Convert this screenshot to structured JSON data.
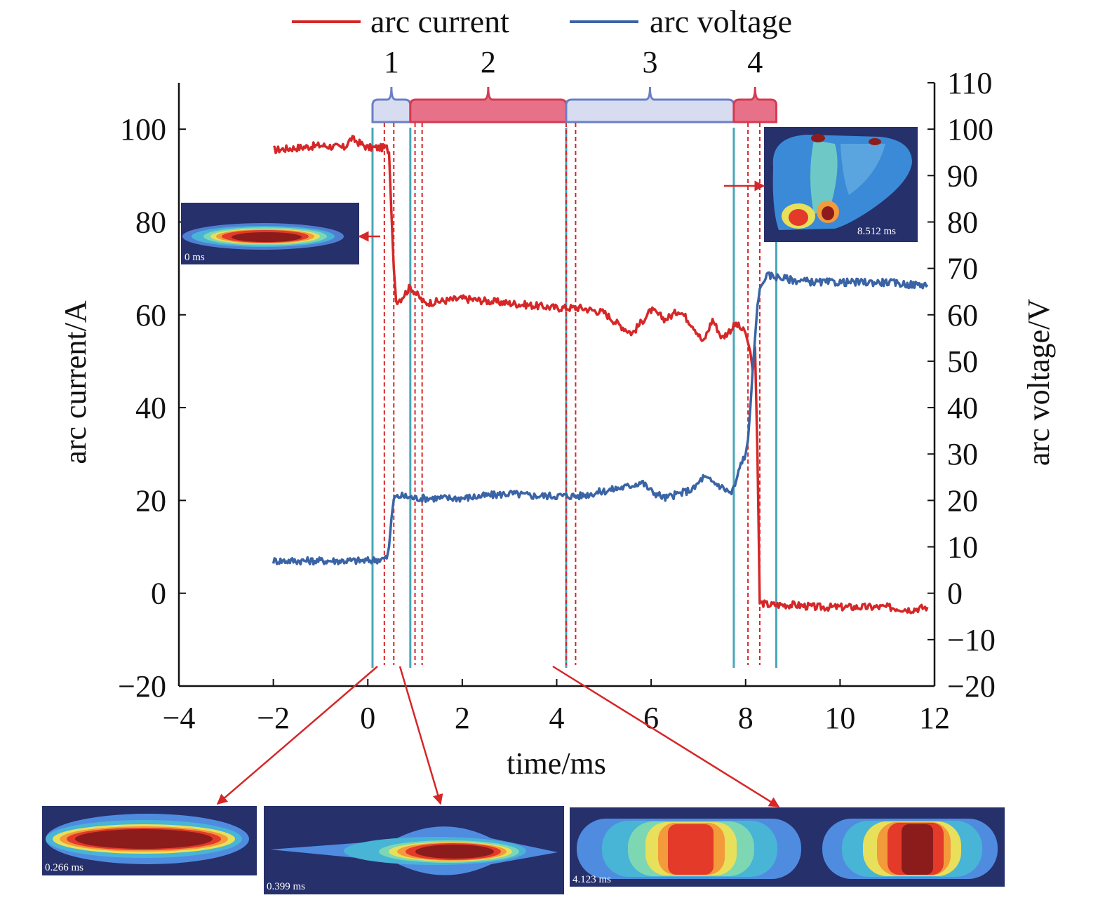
{
  "chart_data": {
    "type": "line",
    "title": "",
    "xlabel": "time/ms",
    "ylabel_left": "arc current/A",
    "ylabel_right": "arc voltage/V",
    "xlim": [
      -4,
      12
    ],
    "ylim_left": [
      -20,
      110
    ],
    "ylim_right": [
      -20,
      110
    ],
    "x_ticks": [
      "−4",
      "−2",
      "0",
      "2",
      "4",
      "6",
      "8",
      "10",
      "12"
    ],
    "left_ticks": [
      "−20",
      "0",
      "20",
      "40",
      "60",
      "80",
      "100"
    ],
    "right_ticks": [
      "−20",
      "−10",
      "0",
      "10",
      "20",
      "30",
      "40",
      "50",
      "60",
      "70",
      "80",
      "90",
      "100",
      "110"
    ],
    "grid": false,
    "legend_position": "top",
    "series": [
      {
        "name": "arc current",
        "color": "#d62728",
        "axis": "left",
        "x": [
          -2,
          -1.5,
          -1,
          -0.5,
          -0.35,
          0,
          0.4,
          0.45,
          0.5,
          0.55,
          0.6,
          0.7,
          0.9,
          1.2,
          1.6,
          2,
          2.5,
          3,
          3.5,
          4,
          4.5,
          5,
          5.3,
          5.6,
          6,
          6.3,
          6.6,
          6.9,
          7.1,
          7.3,
          7.5,
          7.8,
          8.0,
          8.1,
          8.15,
          8.2,
          8.25,
          8.3,
          8.5,
          9,
          9.5,
          10,
          10.5,
          11,
          11.5,
          11.85
        ],
        "values": [
          95.5,
          96,
          96.5,
          96,
          98,
          96,
          96,
          95,
          82,
          70,
          63,
          63.5,
          66,
          62.5,
          63,
          63.5,
          63,
          62.5,
          62,
          61.5,
          61.5,
          60.5,
          58,
          56,
          61,
          59,
          61,
          57.5,
          54,
          59,
          55,
          58,
          56,
          52,
          48,
          53,
          30,
          -2,
          -2.5,
          -2.5,
          -3,
          -3,
          -3,
          -3,
          -3.5,
          -3
        ]
      },
      {
        "name": "arc voltage",
        "color": "#3a64a5",
        "axis": "right",
        "x": [
          -2,
          -1.5,
          -1,
          -0.5,
          0,
          0.4,
          0.45,
          0.5,
          0.55,
          0.7,
          1,
          1.5,
          2,
          2.5,
          3,
          3.5,
          4,
          4.5,
          5,
          5.5,
          5.8,
          6,
          6.3,
          6.6,
          6.9,
          7.1,
          7.4,
          7.7,
          7.8,
          7.9,
          8.0,
          8.05,
          8.1,
          8.15,
          8.2,
          8.25,
          8.3,
          8.4,
          8.5,
          9,
          9.5,
          10,
          10.5,
          11,
          11.5,
          11.85
        ],
        "values": [
          7,
          7,
          7,
          7,
          7,
          7.5,
          10,
          16,
          20.5,
          21,
          20.5,
          20.5,
          20.5,
          21,
          21.5,
          21,
          21,
          21,
          22,
          23,
          24,
          22,
          20.5,
          21.5,
          22.5,
          25,
          23.5,
          21.5,
          24,
          28,
          30,
          33,
          40,
          48,
          55,
          62,
          65,
          68,
          68.5,
          67.5,
          67,
          67,
          67,
          67,
          66.5,
          66.5
        ]
      }
    ],
    "phases": [
      {
        "label": "1",
        "x_start": 0.1,
        "x_end": 0.9,
        "color": "#d8dcf0",
        "edge": "#6b7fc6"
      },
      {
        "label": "2",
        "x_start": 0.9,
        "x_end": 4.2,
        "color": "#e8718a",
        "edge": "#d63a52"
      },
      {
        "label": "3",
        "x_start": 4.2,
        "x_end": 7.75,
        "color": "#d8dcf0",
        "edge": "#6b7fc6"
      },
      {
        "label": "4",
        "x_start": 7.75,
        "x_end": 8.65,
        "color": "#e8718a",
        "edge": "#d63a52"
      }
    ],
    "phase_boundaries_x": [
      0.1,
      0.9,
      4.2,
      7.75,
      8.65
    ],
    "snapshot_markers_x": [
      0.35,
      0.55,
      1.0,
      1.15,
      4.2,
      4.4,
      8.05,
      8.3
    ],
    "insets": [
      {
        "time": "0 ms",
        "colormap": "horizontal-arc"
      },
      {
        "time": "8.512 ms",
        "colormap": "split-arc"
      },
      {
        "time": "0.266 ms",
        "colormap": "wide-arc"
      },
      {
        "time": "0.399 ms",
        "colormap": "thin-arc"
      },
      {
        "time": "4.123 ms",
        "colormap": "double-arc"
      }
    ]
  }
}
